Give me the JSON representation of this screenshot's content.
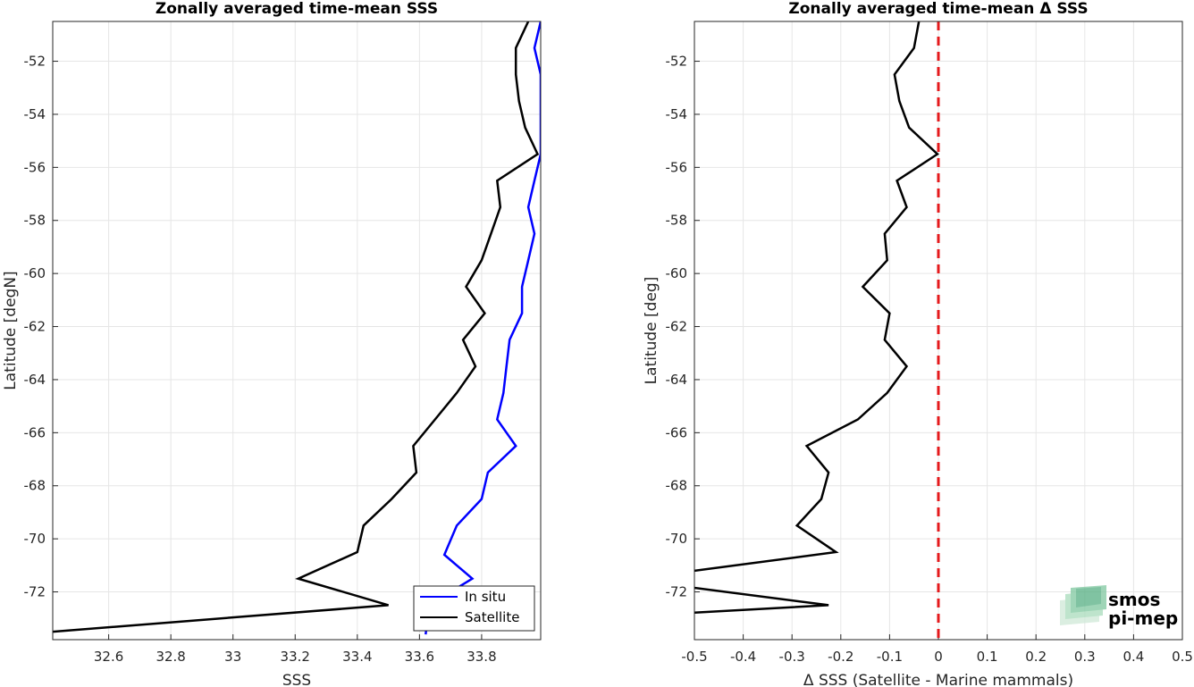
{
  "chart_data": [
    {
      "type": "line",
      "title": "Zonally averaged time-mean SSS",
      "xlabel": "SSS",
      "ylabel": "Latitude [degN]",
      "xlim": [
        32.42,
        33.99
      ],
      "ylim": [
        -73.8,
        -50.5
      ],
      "x_ticks": [
        "32.6",
        "32.8",
        "33",
        "33.2",
        "33.4",
        "33.6",
        "33.8"
      ],
      "y_ticks": [
        "-52",
        "-54",
        "-56",
        "-58",
        "-60",
        "-62",
        "-64",
        "-66",
        "-68",
        "-70",
        "-72"
      ],
      "grid": true,
      "legend_position": "bottom-right",
      "series": [
        {
          "name": "In situ",
          "color": "#0000ff",
          "points": [
            [
              33.99,
              -50.5
            ],
            [
              33.97,
              -51.5
            ],
            [
              33.99,
              -52.5
            ],
            [
              33.99,
              -53.5
            ],
            [
              33.99,
              -54.5
            ],
            [
              33.99,
              -55.5
            ],
            [
              33.97,
              -56.5
            ],
            [
              33.95,
              -57.5
            ],
            [
              33.97,
              -58.5
            ],
            [
              33.95,
              -59.5
            ],
            [
              33.93,
              -60.5
            ],
            [
              33.93,
              -61.5
            ],
            [
              33.89,
              -62.5
            ],
            [
              33.88,
              -63.5
            ],
            [
              33.87,
              -64.5
            ],
            [
              33.85,
              -65.5
            ],
            [
              33.91,
              -66.5
            ],
            [
              33.82,
              -67.5
            ],
            [
              33.8,
              -68.5
            ],
            [
              33.72,
              -69.5
            ],
            [
              33.68,
              -70.6
            ],
            [
              33.77,
              -71.5
            ],
            [
              33.63,
              -72.5
            ],
            [
              33.62,
              -73.6
            ]
          ]
        },
        {
          "name": "Satellite",
          "color": "#000000",
          "points": [
            [
              33.95,
              -50.5
            ],
            [
              33.91,
              -51.5
            ],
            [
              33.91,
              -52.5
            ],
            [
              33.92,
              -53.5
            ],
            [
              33.94,
              -54.5
            ],
            [
              33.98,
              -55.5
            ],
            [
              33.85,
              -56.5
            ],
            [
              33.86,
              -57.5
            ],
            [
              33.83,
              -58.5
            ],
            [
              33.8,
              -59.5
            ],
            [
              33.75,
              -60.5
            ],
            [
              33.81,
              -61.5
            ],
            [
              33.74,
              -62.5
            ],
            [
              33.78,
              -63.5
            ],
            [
              33.72,
              -64.5
            ],
            [
              33.65,
              -65.5
            ],
            [
              33.58,
              -66.5
            ],
            [
              33.59,
              -67.5
            ],
            [
              33.51,
              -68.5
            ],
            [
              33.42,
              -69.5
            ],
            [
              33.4,
              -70.5
            ],
            [
              33.21,
              -71.5
            ],
            [
              33.5,
              -72.5
            ],
            [
              32.42,
              -73.5
            ]
          ]
        }
      ]
    },
    {
      "type": "line",
      "title": "Zonally averaged time-mean Δ SSS",
      "xlabel": "Δ SSS (Satellite - Marine mammals)",
      "ylabel": "Latitude [deg]",
      "xlim": [
        -0.5,
        0.5
      ],
      "ylim": [
        -73.8,
        -50.5
      ],
      "x_ticks": [
        "-0.5",
        "-0.4",
        "-0.3",
        "-0.2",
        "-0.1",
        "0",
        "0.1",
        "0.2",
        "0.3",
        "0.4",
        "0.5"
      ],
      "y_ticks": [
        "-52",
        "-54",
        "-56",
        "-58",
        "-60",
        "-62",
        "-64",
        "-66",
        "-68",
        "-70",
        "-72"
      ],
      "grid": true,
      "reference_line": {
        "x": 0,
        "color": "#e41a1c",
        "style": "dashed"
      },
      "series": [
        {
          "color": "#000000",
          "points": [
            [
              -0.04,
              -50.5
            ],
            [
              -0.05,
              -51.5
            ],
            [
              -0.09,
              -52.5
            ],
            [
              -0.08,
              -53.5
            ],
            [
              -0.06,
              -54.5
            ],
            [
              -0.002,
              -55.5
            ],
            [
              -0.085,
              -56.5
            ],
            [
              -0.065,
              -57.5
            ],
            [
              -0.11,
              -58.5
            ],
            [
              -0.105,
              -59.5
            ],
            [
              -0.155,
              -60.5
            ],
            [
              -0.1,
              -61.5
            ],
            [
              -0.11,
              -62.5
            ],
            [
              -0.065,
              -63.5
            ],
            [
              -0.105,
              -64.5
            ],
            [
              -0.165,
              -65.5
            ],
            [
              -0.27,
              -66.5
            ],
            [
              -0.225,
              -67.5
            ],
            [
              -0.24,
              -68.5
            ],
            [
              -0.29,
              -69.5
            ],
            [
              -0.21,
              -70.5
            ],
            [
              -0.52,
              -71.25
            ],
            [
              -0.52,
              -71.8
            ],
            [
              -0.225,
              -72.5
            ],
            [
              -0.52,
              -72.8
            ]
          ]
        }
      ]
    }
  ],
  "logo": {
    "line1": "smos",
    "line2": "pi-mep",
    "color": "#7fc8a0"
  }
}
